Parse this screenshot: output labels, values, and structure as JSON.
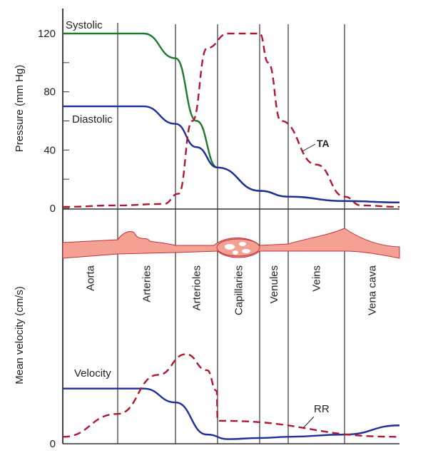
{
  "chart_data": [
    {
      "type": "line",
      "ylabel": "Pressure (mm Hg)",
      "ylim": [
        0,
        140
      ],
      "yticks": [
        "0",
        "40",
        "80",
        "120"
      ],
      "regions": [
        "Aorta",
        "Arteries",
        "Arterioles",
        "Capillaries",
        "Venules",
        "Veins",
        "Vena cava"
      ],
      "colors": {
        "systolic": "#1e7a2a",
        "diastolic": "#1f2f9a",
        "ta": "#b01830"
      },
      "series": [
        {
          "name": "Systolic",
          "style": "solid",
          "x": [
            0,
            1.45,
            2,
            2.5,
            3,
            4,
            5,
            6,
            7
          ],
          "y": [
            120,
            120,
            103,
            60,
            28,
            12,
            8,
            5,
            4
          ]
        },
        {
          "name": "Diastolic",
          "style": "solid",
          "x": [
            0,
            1.45,
            2,
            2.5,
            3,
            4,
            5,
            6,
            7
          ],
          "y": [
            70,
            70,
            58,
            42,
            28,
            12,
            8,
            5,
            4
          ]
        },
        {
          "name": "TA",
          "style": "dashed",
          "x": [
            0,
            1,
            1.8,
            2.07,
            2.4,
            2.75,
            3.25,
            4,
            4.3,
            4.75,
            5.5,
            6,
            6.3,
            7
          ],
          "y": [
            1,
            2,
            3,
            10,
            60,
            110,
            120,
            120,
            100,
            60,
            30,
            8,
            2,
            1
          ]
        }
      ]
    },
    {
      "type": "line",
      "ylabel": "Mean velocity (cm/s)",
      "ylim": [
        0,
        100
      ],
      "yticks": [
        "0"
      ],
      "series": [
        {
          "name": "Velocity",
          "style": "solid",
          "x": [
            0,
            1.45,
            2,
            2.75,
            3.25,
            4,
            5,
            6,
            7
          ],
          "y": [
            24,
            24,
            18,
            4,
            2,
            2.5,
            3,
            4,
            8
          ]
        },
        {
          "name": "RR",
          "style": "dashed",
          "x": [
            0,
            1,
            1.7,
            2.25,
            2.75,
            2.98,
            3,
            7
          ],
          "y": [
            3,
            13,
            30,
            39,
            32,
            23,
            10,
            3
          ]
        }
      ]
    }
  ]
}
